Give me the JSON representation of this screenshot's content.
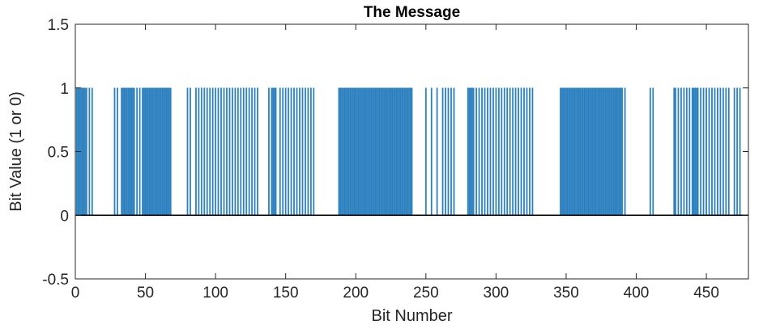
{
  "chart_data": {
    "type": "bar",
    "title": "The Message",
    "xlabel": "Bit Number",
    "ylabel": "Bit Value (1 or 0)",
    "xlim": [
      0,
      480
    ],
    "ylim": [
      -0.5,
      1.5
    ],
    "xticks": [
      "0",
      "50",
      "100",
      "150",
      "200",
      "250",
      "300",
      "350",
      "400",
      "450"
    ],
    "yticks": [
      "-0.5",
      "0",
      "0.5",
      "1",
      "1.5"
    ],
    "grid": false,
    "legend": "none",
    "bar_color": "#2a7fbf",
    "bit_numbers_with_value_1": [
      1,
      2,
      3,
      4,
      5,
      6,
      7,
      8,
      10,
      12,
      28,
      30,
      33,
      34,
      35,
      36,
      37,
      38,
      39,
      40,
      41,
      42,
      44,
      46,
      48,
      49,
      50,
      51,
      52,
      53,
      54,
      55,
      56,
      57,
      58,
      59,
      60,
      61,
      62,
      63,
      64,
      65,
      66,
      67,
      68,
      80,
      82,
      86,
      88,
      90,
      92,
      94,
      96,
      98,
      100,
      102,
      104,
      106,
      108,
      110,
      112,
      114,
      116,
      118,
      120,
      122,
      124,
      126,
      128,
      130,
      138,
      140,
      141,
      142,
      143,
      146,
      148,
      150,
      152,
      154,
      156,
      158,
      160,
      162,
      164,
      166,
      168,
      170,
      188,
      189,
      190,
      191,
      192,
      193,
      194,
      195,
      196,
      197,
      198,
      199,
      200,
      201,
      202,
      203,
      204,
      205,
      206,
      207,
      208,
      209,
      210,
      211,
      212,
      213,
      214,
      215,
      216,
      217,
      218,
      219,
      220,
      221,
      222,
      223,
      224,
      225,
      226,
      227,
      228,
      229,
      230,
      231,
      232,
      233,
      234,
      235,
      236,
      237,
      238,
      239,
      240,
      250,
      254,
      258,
      262,
      264,
      266,
      268,
      270,
      280,
      281,
      282,
      283,
      284,
      286,
      288,
      290,
      292,
      294,
      296,
      298,
      300,
      302,
      304,
      306,
      308,
      310,
      312,
      314,
      316,
      318,
      320,
      322,
      324,
      326,
      346,
      347,
      348,
      349,
      350,
      351,
      352,
      353,
      354,
      355,
      356,
      357,
      358,
      359,
      360,
      361,
      362,
      363,
      364,
      365,
      366,
      367,
      368,
      369,
      370,
      371,
      372,
      373,
      374,
      375,
      376,
      377,
      378,
      379,
      380,
      381,
      382,
      383,
      384,
      385,
      386,
      387,
      388,
      389,
      390,
      392,
      410,
      412,
      427,
      428,
      430,
      432,
      434,
      436,
      438,
      440,
      441,
      442,
      443,
      444,
      446,
      448,
      450,
      452,
      454,
      456,
      458,
      460,
      462,
      464,
      466,
      470,
      472,
      474
    ]
  }
}
